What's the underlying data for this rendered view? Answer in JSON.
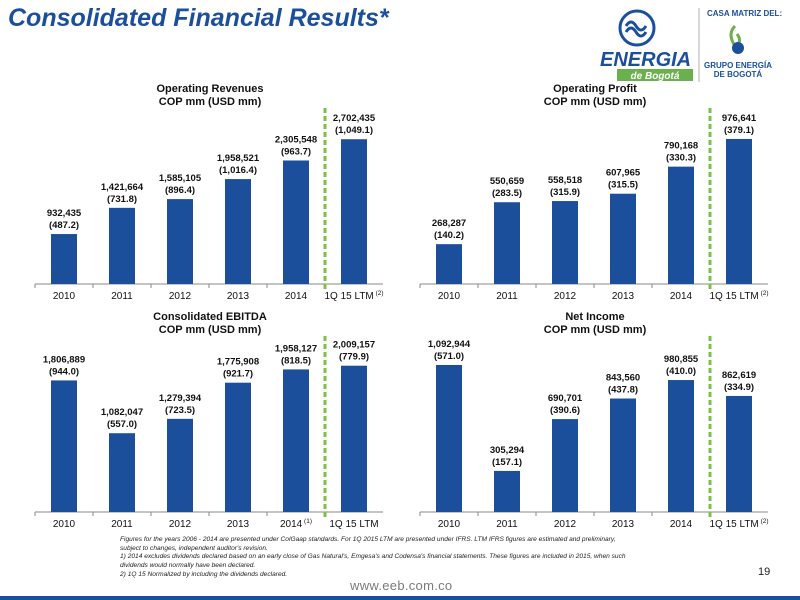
{
  "page": {
    "title": "Consolidated Financial Results*",
    "page_number": "19",
    "website": "www.eeb.com.co",
    "logo": {
      "brand_main": "ENERGIA",
      "brand_sub": "de Bogotá",
      "parent_label": "CASA MATRIZ DEL:",
      "parent_name_line1": "GRUPO ENERGÍA",
      "parent_name_line2": "DE BOGOTÁ",
      "brand_color": "#1b4f9c",
      "accent_color": "#6ab04c"
    },
    "footnotes": [
      "Figures for the years 2006 - 2014 are presented under ColGaap standards. For 1Q 2015 LTM are presented under IFRS. LTM IFRS figures are estimated and preliminary,",
      "subject to changes, independent auditor's revision.",
      "1) 2014 excludes dividends declared based on an early  close of Gas Natural's, Emgesa's and Codensa's financial statements. These figures are included in 2015, when such",
      "dividends would normally have been declared.",
      "2) 1Q 15 Normalized by including the dividends declared."
    ]
  },
  "colors": {
    "bar": "#1b4f9c",
    "divider": "#7cc242",
    "text": "#111111",
    "axis": "#8a8a8a"
  },
  "chart_data": [
    {
      "type": "bar",
      "title_line1": "Operating Revenues",
      "title_line2": "COP mm (USD mm)",
      "categories": [
        "2010",
        "2011",
        "2012",
        "2013",
        "2014",
        "1Q 15 LTM"
      ],
      "category_superscripts": [
        "",
        "",
        "",
        "",
        "",
        "(2)"
      ],
      "values": [
        932435,
        1421664,
        1585105,
        1958521,
        2305548,
        2702435
      ],
      "value_labels": [
        "932,435",
        "1,421,664",
        "1,585,105",
        "1,958,521",
        "2,305,548",
        "2,702,435"
      ],
      "usd_labels": [
        "(487.2)",
        "(731.8)",
        "(896.4)",
        "(1,016.4)",
        "(963.7)",
        "(1,049.1)"
      ],
      "usd_values": [
        487.2,
        731.8,
        896.4,
        1016.4,
        963.7,
        1049.1
      ],
      "ylim": [
        0,
        2800000
      ],
      "grid": false,
      "divider_after_index": 4
    },
    {
      "type": "bar",
      "title_line1": "Operating Profit",
      "title_line2": "COP mm (USD mm)",
      "categories": [
        "2010",
        "2011",
        "2012",
        "2013",
        "2014",
        "1Q 15 LTM"
      ],
      "category_superscripts": [
        "",
        "",
        "",
        "",
        "",
        "(2)"
      ],
      "values": [
        268287,
        550659,
        558518,
        607965,
        790168,
        976641
      ],
      "value_labels": [
        "268,287",
        "550,659",
        "558,518",
        "607,965",
        "790,168",
        "976,641"
      ],
      "usd_labels": [
        "(140.2)",
        "(283.5)",
        "(315.9)",
        "(315.5)",
        "(330.3)",
        "(379.1)"
      ],
      "usd_values": [
        140.2,
        283.5,
        315.9,
        315.5,
        330.3,
        379.1
      ],
      "ylim": [
        0,
        1010000
      ],
      "grid": false,
      "divider_after_index": 4
    },
    {
      "type": "bar",
      "title_line1": "Consolidated EBITDA",
      "title_line2": "COP mm (USD mm)",
      "categories": [
        "2010",
        "2011",
        "2012",
        "2013",
        "2014",
        "1Q 15 LTM"
      ],
      "category_superscripts": [
        "",
        "",
        "",
        "",
        "(1)",
        ""
      ],
      "values": [
        1806889,
        1082047,
        1279394,
        1775908,
        1958127,
        2009157
      ],
      "value_labels": [
        "1,806,889",
        "1,082,047",
        "1,279,394",
        "1,775,908",
        "1,958,127",
        "2,009,157"
      ],
      "usd_labels": [
        "(944.0)",
        "(557.0)",
        "(723.5)",
        "(921.7)",
        "(818.5)",
        "(779.9)"
      ],
      "usd_values": [
        944.0,
        557.0,
        723.5,
        921.7,
        818.5,
        779.9
      ],
      "ylim": [
        0,
        2060000
      ],
      "grid": false,
      "divider_after_index": 4
    },
    {
      "type": "bar",
      "title_line1": "Net Income",
      "title_line2": "COP mm (USD mm)",
      "categories": [
        "2010",
        "2011",
        "2012",
        "2013",
        "2014",
        "1Q 15 LTM"
      ],
      "category_superscripts": [
        "",
        "",
        "",
        "",
        "",
        "(2)"
      ],
      "values": [
        1092944,
        305294,
        690701,
        843560,
        980855,
        862619
      ],
      "value_labels": [
        "1,092,944",
        "305,294",
        "690,701",
        "843,560",
        "980,855",
        "862,619"
      ],
      "usd_labels": [
        "(571.0)",
        "(157.1)",
        "(390.6)",
        "(437.8)",
        "(410.0)",
        "(334.9)"
      ],
      "usd_values": [
        571.0,
        157.1,
        390.6,
        437.8,
        410.0,
        334.9
      ],
      "ylim": [
        0,
        1115000
      ],
      "grid": false,
      "divider_after_index": 4
    }
  ]
}
